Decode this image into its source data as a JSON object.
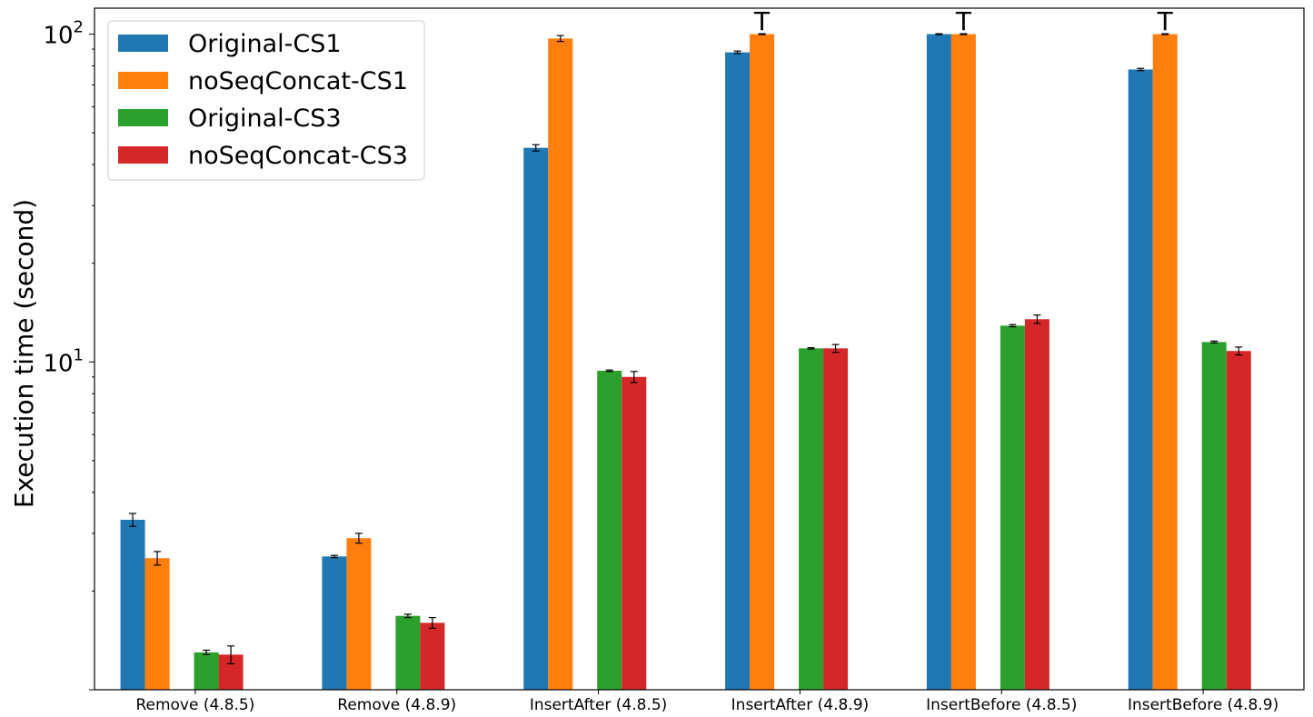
{
  "chart_data": {
    "type": "bar",
    "title": "",
    "xlabel": "",
    "ylabel": "Execution time (second)",
    "yscale": "log",
    "ylim": [
      1.0,
      120
    ],
    "yticks": [
      {
        "value": 10,
        "base": "10",
        "exp": "1"
      },
      {
        "value": 100,
        "base": "10",
        "exp": "2"
      }
    ],
    "grid": false,
    "legend_position": "upper-left",
    "categories": [
      "Remove (4.8.5)",
      "Remove (4.8.9)",
      "InsertAfter (4.8.5)",
      "InsertAfter (4.8.9)",
      "InsertBefore (4.8.5)",
      "InsertBefore (4.8.9)"
    ],
    "series": [
      {
        "name": "Original-CS1",
        "color": "#1f77b4",
        "values": [
          3.3,
          2.55,
          45,
          88,
          100,
          78
        ],
        "errors": [
          0.15,
          0.02,
          1.0,
          0.8,
          0.3,
          0.6
        ]
      },
      {
        "name": "noSeqConcat-CS1",
        "color": "#ff7f0e",
        "values": [
          2.52,
          2.9,
          97,
          100,
          100,
          100
        ],
        "errors": [
          0.12,
          0.1,
          2.0,
          0.3,
          0.3,
          0.3
        ]
      },
      {
        "name": "Original-CS3",
        "color": "#2ca02c",
        "values": [
          1.3,
          1.68,
          9.4,
          11.0,
          12.9,
          11.5
        ],
        "errors": [
          0.02,
          0.02,
          0.05,
          0.05,
          0.1,
          0.08
        ]
      },
      {
        "name": "noSeqConcat-CS3",
        "color": "#d62728",
        "values": [
          1.28,
          1.6,
          9.0,
          11.0,
          13.5,
          10.8
        ],
        "errors": [
          0.08,
          0.06,
          0.35,
          0.3,
          0.4,
          0.3
        ]
      }
    ],
    "annotations": [
      {
        "text": "T",
        "category_index": 3
      },
      {
        "text": "T",
        "category_index": 4
      },
      {
        "text": "T",
        "category_index": 5
      }
    ]
  }
}
